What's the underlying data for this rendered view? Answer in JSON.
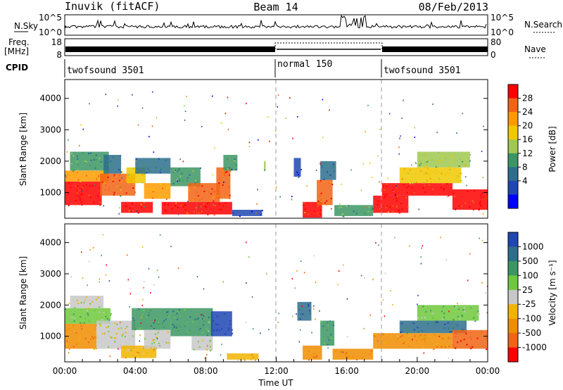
{
  "header": {
    "station": "Inuvik (fitACF)",
    "beam": "Beam 14",
    "date": "08/Feb/2013"
  },
  "nsky_panel": {
    "left_label": "N.Sky",
    "right_label": "N.Search",
    "ticks_left": [
      "10^5",
      "10^0"
    ],
    "ticks_right": [
      "10^5",
      "10^0"
    ]
  },
  "freq_panel": {
    "left_label_line1": "Freq.",
    "left_label_line2": "[MHz]",
    "right_label": "Nave",
    "ticks_left": [
      "18",
      "8"
    ],
    "ticks_right": [
      "80",
      "0"
    ]
  },
  "cpid_panel": {
    "label": "CPID",
    "segments": [
      {
        "name": "twofsound 3501",
        "start_hour": 0,
        "end_hour": 12
      },
      {
        "name": "normal 150",
        "start_hour": 12,
        "end_hour": 18
      },
      {
        "name": "twofsound 3501",
        "start_hour": 18,
        "end_hour": 24
      }
    ]
  },
  "chart_data": [
    {
      "type": "heatmap",
      "name": "power",
      "ylabel": "Slant Range [km]",
      "xlim": [
        0,
        24
      ],
      "ylim": [
        180,
        4600
      ],
      "yticks": [
        1000,
        2000,
        3000,
        4000
      ],
      "colorbar_label": "Power [dB]",
      "colorbar_ticks": [
        "28",
        "24",
        "20",
        "16",
        "12",
        "8",
        "4"
      ],
      "colors": [
        "#ff0000",
        "#f26414",
        "#ff9b00",
        "#f0c800",
        "#a0c850",
        "#3c9664",
        "#2d6e8c",
        "#1e46b4",
        "#0000ff"
      ],
      "regions": [
        {
          "x0": 0.0,
          "x1": 2.1,
          "y0": 600,
          "y1": 1350,
          "level": 0
        },
        {
          "x0": 0.0,
          "x1": 2.5,
          "y0": 1350,
          "y1": 1700,
          "level": 2
        },
        {
          "x0": 0.3,
          "x1": 2.5,
          "y0": 1700,
          "y1": 2300,
          "level": 5
        },
        {
          "x0": 2.0,
          "x1": 4.0,
          "y0": 900,
          "y1": 1600,
          "level": 1
        },
        {
          "x0": 2.2,
          "x1": 3.2,
          "y0": 1600,
          "y1": 2200,
          "level": 6
        },
        {
          "x0": 3.2,
          "x1": 5.0,
          "y0": 350,
          "y1": 700,
          "level": 0
        },
        {
          "x0": 3.5,
          "x1": 4.6,
          "y0": 1300,
          "y1": 1800,
          "level": 3
        },
        {
          "x0": 4.0,
          "x1": 6.0,
          "y0": 1600,
          "y1": 2100,
          "level": 6
        },
        {
          "x0": 4.5,
          "x1": 6.0,
          "y0": 800,
          "y1": 1300,
          "level": 2
        },
        {
          "x0": 5.5,
          "x1": 7.5,
          "y0": 300,
          "y1": 700,
          "level": 0
        },
        {
          "x0": 6.0,
          "x1": 7.7,
          "y0": 1200,
          "y1": 1800,
          "level": 5
        },
        {
          "x0": 7.0,
          "x1": 8.8,
          "y0": 700,
          "y1": 1300,
          "level": 1
        },
        {
          "x0": 7.5,
          "x1": 9.5,
          "y0": 300,
          "y1": 700,
          "level": 0
        },
        {
          "x0": 8.6,
          "x1": 9.4,
          "y0": 800,
          "y1": 1800,
          "level": 1
        },
        {
          "x0": 9.0,
          "x1": 9.8,
          "y0": 1700,
          "y1": 2200,
          "level": 5
        },
        {
          "x0": 9.5,
          "x1": 11.2,
          "y0": 250,
          "y1": 450,
          "level": 7
        },
        {
          "x0": 11.3,
          "x1": 11.4,
          "y0": 1700,
          "y1": 2000,
          "level": 4
        },
        {
          "x0": 13.0,
          "x1": 13.4,
          "y0": 1500,
          "y1": 2100,
          "level": 7
        },
        {
          "x0": 13.5,
          "x1": 14.6,
          "y0": 200,
          "y1": 700,
          "level": 0
        },
        {
          "x0": 14.3,
          "x1": 15.2,
          "y0": 600,
          "y1": 1400,
          "level": 1
        },
        {
          "x0": 14.5,
          "x1": 15.4,
          "y0": 1400,
          "y1": 2000,
          "level": 6
        },
        {
          "x0": 15.3,
          "x1": 17.5,
          "y0": 250,
          "y1": 600,
          "level": 5
        },
        {
          "x0": 17.5,
          "x1": 19.5,
          "y0": 350,
          "y1": 900,
          "level": 0
        },
        {
          "x0": 18.0,
          "x1": 22.0,
          "y0": 900,
          "y1": 1300,
          "level": 0
        },
        {
          "x0": 19.0,
          "x1": 22.5,
          "y0": 1300,
          "y1": 1800,
          "level": 3
        },
        {
          "x0": 20.0,
          "x1": 23.0,
          "y0": 1800,
          "y1": 2300,
          "level": 4
        },
        {
          "x0": 22.0,
          "x1": 24.0,
          "y0": 450,
          "y1": 1100,
          "level": 0
        }
      ]
    },
    {
      "type": "heatmap",
      "name": "velocity",
      "ylabel": "Slant Range [km]",
      "xlabel": "Time UT",
      "xlim": [
        0,
        24
      ],
      "ylim": [
        180,
        4600
      ],
      "yticks": [
        1000,
        2000,
        3000,
        4000
      ],
      "xticks": [
        "00:00",
        "04:00",
        "08:00",
        "12:00",
        "16:00",
        "20:00",
        "00:00"
      ],
      "colorbar_label": "Velocity [m s⁻¹]",
      "colorbar_ticks": [
        "1000",
        "500",
        "100",
        "25",
        "-25",
        "-100",
        "-500",
        "-1000"
      ],
      "colors": [
        "#1e46b4",
        "#2d6e8c",
        "#3c9664",
        "#6ec83c",
        "#c8c8c8",
        "#f0b400",
        "#f08c00",
        "#f06414",
        "#ff0000"
      ],
      "regions": [
        {
          "x0": 0.0,
          "x1": 1.8,
          "y0": 600,
          "y1": 1400,
          "level": 6
        },
        {
          "x0": 0.0,
          "x1": 2.6,
          "y0": 1400,
          "y1": 1900,
          "level": 3
        },
        {
          "x0": 0.3,
          "x1": 2.2,
          "y0": 1900,
          "y1": 2300,
          "level": 4
        },
        {
          "x0": 1.8,
          "x1": 4.0,
          "y0": 600,
          "y1": 1500,
          "level": 4
        },
        {
          "x0": 3.2,
          "x1": 5.2,
          "y0": 300,
          "y1": 700,
          "level": 5
        },
        {
          "x0": 3.8,
          "x1": 6.0,
          "y0": 1200,
          "y1": 1900,
          "level": 2
        },
        {
          "x0": 4.5,
          "x1": 6.0,
          "y0": 600,
          "y1": 1200,
          "level": 4
        },
        {
          "x0": 6.0,
          "x1": 8.4,
          "y0": 1000,
          "y1": 1900,
          "level": 2
        },
        {
          "x0": 8.3,
          "x1": 9.5,
          "y0": 1000,
          "y1": 1800,
          "level": 0
        },
        {
          "x0": 7.2,
          "x1": 8.4,
          "y0": 550,
          "y1": 1000,
          "level": 4
        },
        {
          "x0": 9.2,
          "x1": 11.0,
          "y0": 250,
          "y1": 450,
          "level": 5
        },
        {
          "x0": 13.2,
          "x1": 14.0,
          "y0": 1500,
          "y1": 2100,
          "level": 1
        },
        {
          "x0": 13.5,
          "x1": 14.6,
          "y0": 250,
          "y1": 700,
          "level": 6
        },
        {
          "x0": 14.5,
          "x1": 15.3,
          "y0": 700,
          "y1": 1500,
          "level": 2
        },
        {
          "x0": 15.2,
          "x1": 17.5,
          "y0": 250,
          "y1": 600,
          "level": 6
        },
        {
          "x0": 17.5,
          "x1": 22.0,
          "y0": 600,
          "y1": 1100,
          "level": 6
        },
        {
          "x0": 19.0,
          "x1": 22.8,
          "y0": 1100,
          "y1": 1500,
          "level": 1
        },
        {
          "x0": 20.0,
          "x1": 23.5,
          "y0": 1500,
          "y1": 2000,
          "level": 3
        },
        {
          "x0": 22.0,
          "x1": 24.0,
          "y0": 600,
          "y1": 1200,
          "level": 7
        }
      ]
    }
  ]
}
